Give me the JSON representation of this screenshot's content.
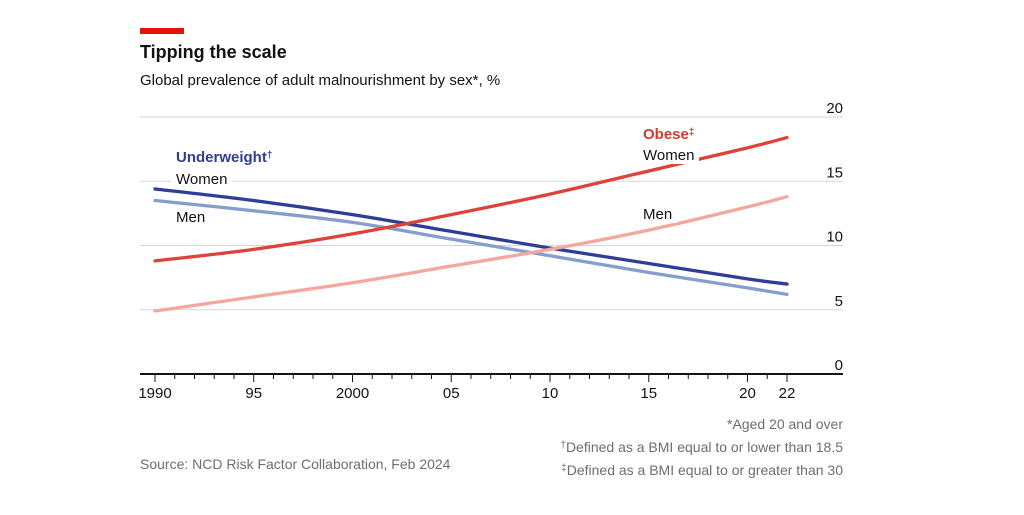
{
  "header": {
    "title": "Tipping the scale",
    "subtitle": "Global prevalence of adult malnourishment by sex*, %"
  },
  "annotations": {
    "underweight": {
      "text": "Underweight",
      "sup": "†",
      "women": "Women",
      "men": "Men"
    },
    "obese": {
      "text": "Obese",
      "sup": "‡",
      "women": "Women",
      "men": "Men"
    }
  },
  "footer": {
    "source": "Source: NCD Risk Factor Collaboration, Feb 2024",
    "footnotes": [
      {
        "sup": "",
        "text": "*Aged 20 and over"
      },
      {
        "sup": "†",
        "text": "Defined as a BMI equal to or lower than 18.5"
      },
      {
        "sup": "‡",
        "text": "Defined as a BMI equal to or greater than 30"
      }
    ]
  },
  "colors": {
    "accent": "#e3120b",
    "text": "#121212",
    "muted": "#6e6e6e",
    "grid": "#d6d6d6",
    "underweight_label": "#2e3d96",
    "obese_label": "#d6382d"
  },
  "chart_data": {
    "type": "line",
    "title": "Tipping the scale",
    "subtitle": "Global prevalence of adult malnourishment by sex*, %",
    "x": [
      1990,
      1995,
      2000,
      2005,
      2010,
      2015,
      2020,
      2022
    ],
    "series": [
      {
        "name": "Obese women",
        "group": "Obese",
        "sex": "Women",
        "color": "#e04138",
        "values": [
          8.8,
          9.7,
          10.9,
          12.4,
          14.0,
          15.8,
          17.6,
          18.4
        ]
      },
      {
        "name": "Obese men",
        "group": "Obese",
        "sex": "Men",
        "color": "#f4a79c",
        "values": [
          4.9,
          6.0,
          7.1,
          8.4,
          9.7,
          11.2,
          13.0,
          13.8
        ]
      },
      {
        "name": "Underweight women",
        "group": "Underweight",
        "sex": "Women",
        "color": "#2e3d96",
        "values": [
          14.4,
          13.5,
          12.4,
          11.1,
          9.8,
          8.6,
          7.4,
          7.0
        ]
      },
      {
        "name": "Underweight men",
        "group": "Underweight",
        "sex": "Men",
        "color": "#859ecb",
        "values": [
          13.5,
          12.7,
          11.8,
          10.5,
          9.2,
          7.9,
          6.7,
          6.2
        ]
      }
    ],
    "xlabel": "",
    "ylabel": "%",
    "ylim": [
      0,
      20
    ],
    "yticks": [
      0,
      5,
      10,
      15,
      20
    ],
    "yaxis_side": "right",
    "xrange": [
      1990,
      2022
    ],
    "xtick_labels": [
      {
        "year": 1990,
        "label": "1990"
      },
      {
        "year": 1995,
        "label": "95"
      },
      {
        "year": 2000,
        "label": "2000"
      },
      {
        "year": 2005,
        "label": "05"
      },
      {
        "year": 2010,
        "label": "10"
      },
      {
        "year": 2015,
        "label": "15"
      },
      {
        "year": 2020,
        "label": "20"
      },
      {
        "year": 2022,
        "label": "22"
      }
    ],
    "grid": "horizontal",
    "legend_position": "inline-labels"
  }
}
